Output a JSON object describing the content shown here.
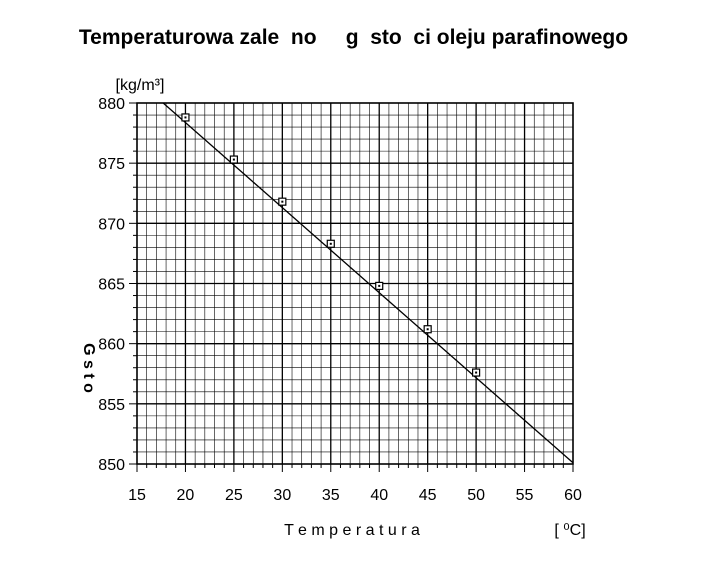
{
  "chart_data": {
    "type": "line",
    "title": "Temperaturowa zale  no     g  sto  ci oleju parafinowego",
    "xlabel": "T e m p e r a t u r a",
    "xunit": "[ ⁰C]",
    "ylabel": "G       s       t       o",
    "yunit": "[kg/m³]",
    "xlim": [
      15,
      60
    ],
    "ylim": [
      850,
      880
    ],
    "xticks": [
      15,
      20,
      25,
      30,
      35,
      40,
      45,
      50,
      55,
      60
    ],
    "yticks": [
      850,
      855,
      860,
      865,
      870,
      875,
      880
    ],
    "grid": true,
    "line": {
      "x": [
        17.7,
        60
      ],
      "y": [
        880,
        850.1
      ]
    },
    "series": [
      {
        "x": [
          20,
          25,
          30,
          35,
          40,
          45,
          50
        ],
        "y": [
          878.8,
          875.3,
          871.8,
          868.3,
          864.8,
          861.2,
          857.6
        ]
      }
    ]
  }
}
